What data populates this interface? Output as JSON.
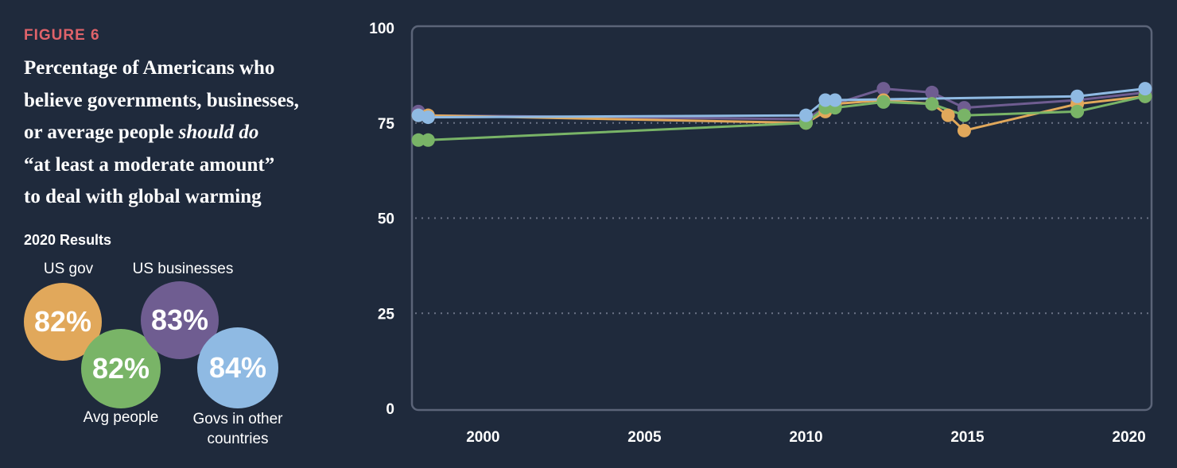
{
  "figure_label": "FIGURE 6",
  "title": {
    "line1": "Percentage of Americans who",
    "line2": "believe governments, businesses,",
    "line3_a": "or average people ",
    "line3_em": "should do",
    "line4": "“at least a moderate amount”",
    "line5": "to deal with global warming"
  },
  "results": {
    "heading": "2020 Results",
    "items": [
      {
        "label": "US gov",
        "value": "82%",
        "color": "#e1a85b"
      },
      {
        "label": "Avg people",
        "value": "82%",
        "color": "#79b467"
      },
      {
        "label": "US businesses",
        "value": "83%",
        "color": "#6f5d91"
      },
      {
        "label": "Govs in other countries",
        "label_line1": "Govs in other",
        "label_line2": "countries",
        "value": "84%",
        "color": "#8fbae3"
      }
    ]
  },
  "chart_data": {
    "type": "line",
    "xlim": [
      1997.8,
      2020.7
    ],
    "ylim": [
      0,
      100
    ],
    "yticks": [
      0,
      25,
      50,
      75,
      100
    ],
    "xticks": [
      2000,
      2005,
      2010,
      2015,
      2020
    ],
    "grid": "horizontal dotted at 25, 50, 75",
    "legend": "none",
    "series": [
      {
        "key": "us_businesses",
        "color": "#6f5d91",
        "points": [
          [
            1998.0,
            78
          ],
          [
            1998.3,
            77
          ],
          [
            2010.0,
            76
          ],
          [
            2010.6,
            79
          ],
          [
            2010.9,
            80
          ],
          [
            2012.4,
            84
          ],
          [
            2013.9,
            83
          ],
          [
            2014.9,
            79
          ],
          [
            2018.4,
            81
          ],
          [
            2020.5,
            83
          ]
        ]
      },
      {
        "key": "us_gov",
        "color": "#e1a85b",
        "points": [
          [
            1998.0,
            77
          ],
          [
            1998.3,
            77
          ],
          [
            2010.0,
            75
          ],
          [
            2010.6,
            78
          ],
          [
            2010.9,
            80
          ],
          [
            2012.4,
            81
          ],
          [
            2013.9,
            80
          ],
          [
            2014.4,
            77
          ],
          [
            2014.9,
            73
          ],
          [
            2018.4,
            80
          ],
          [
            2020.5,
            82
          ]
        ]
      },
      {
        "key": "avg_people",
        "color": "#79b467",
        "points": [
          [
            1998.0,
            70.5
          ],
          [
            1998.3,
            70.5
          ],
          [
            2010.0,
            75
          ],
          [
            2010.6,
            79
          ],
          [
            2010.9,
            79
          ],
          [
            2012.4,
            80.5
          ],
          [
            2013.9,
            80
          ],
          [
            2014.9,
            77
          ],
          [
            2018.4,
            78
          ],
          [
            2020.5,
            82
          ]
        ]
      },
      {
        "key": "govs_other_countries",
        "color": "#8fbae3",
        "points": [
          [
            1998.0,
            77
          ],
          [
            1998.3,
            76.5
          ],
          [
            2010.0,
            77
          ],
          [
            2010.6,
            81
          ],
          [
            2010.9,
            81
          ],
          [
            2018.4,
            82
          ],
          [
            2020.5,
            84
          ]
        ]
      }
    ]
  }
}
